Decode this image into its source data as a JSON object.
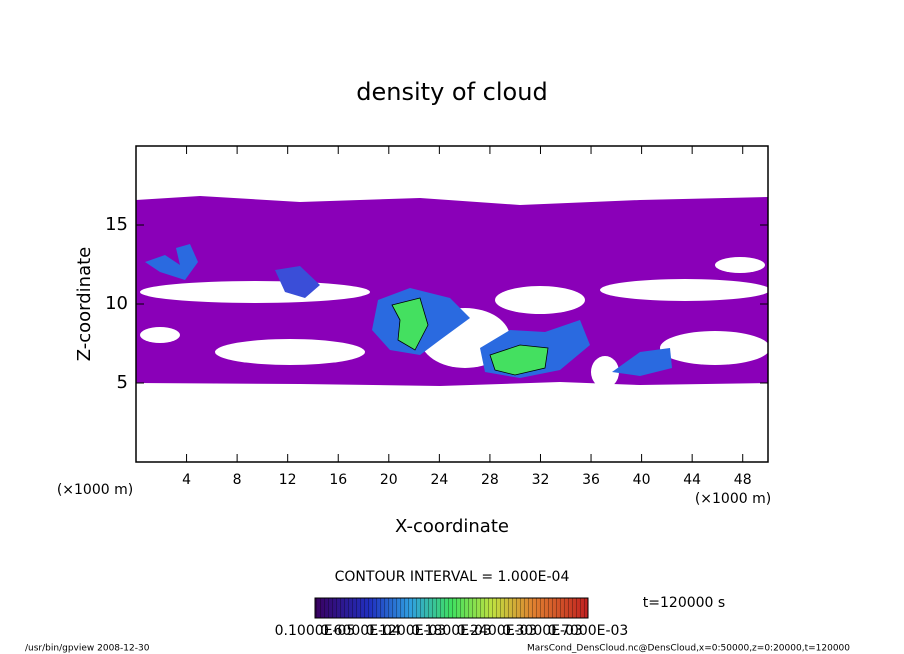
{
  "chart_data": {
    "type": "contour",
    "title": "density of cloud",
    "x_label": "X-coordinate",
    "y_label": "Z-coordinate",
    "x_unit": "(×1000 m)",
    "y_unit": "(×1000 m)",
    "xlim": [
      0,
      50
    ],
    "xticks": [
      4,
      8,
      12,
      16,
      20,
      24,
      28,
      32,
      36,
      40,
      44,
      48
    ],
    "ylim": [
      0,
      20
    ],
    "yticks": [
      5,
      10,
      15
    ],
    "contour_interval": "CONTOUR INTERVAL = 1.000E-04",
    "time": "t=120000 s",
    "colorbar_labels": [
      "0.1000E-05",
      "0.6000E-04",
      "0.1200E-03",
      "0.1800E-03",
      "0.2400E-03",
      "0.3000E-03",
      "0.7000E-03"
    ],
    "footer_left": "/usr/bin/gpview  2008-12-30",
    "footer_right": "MarsCond_DensCloud.nc@DensCloud,x=0:50000,z=0:20000,t=120000"
  }
}
